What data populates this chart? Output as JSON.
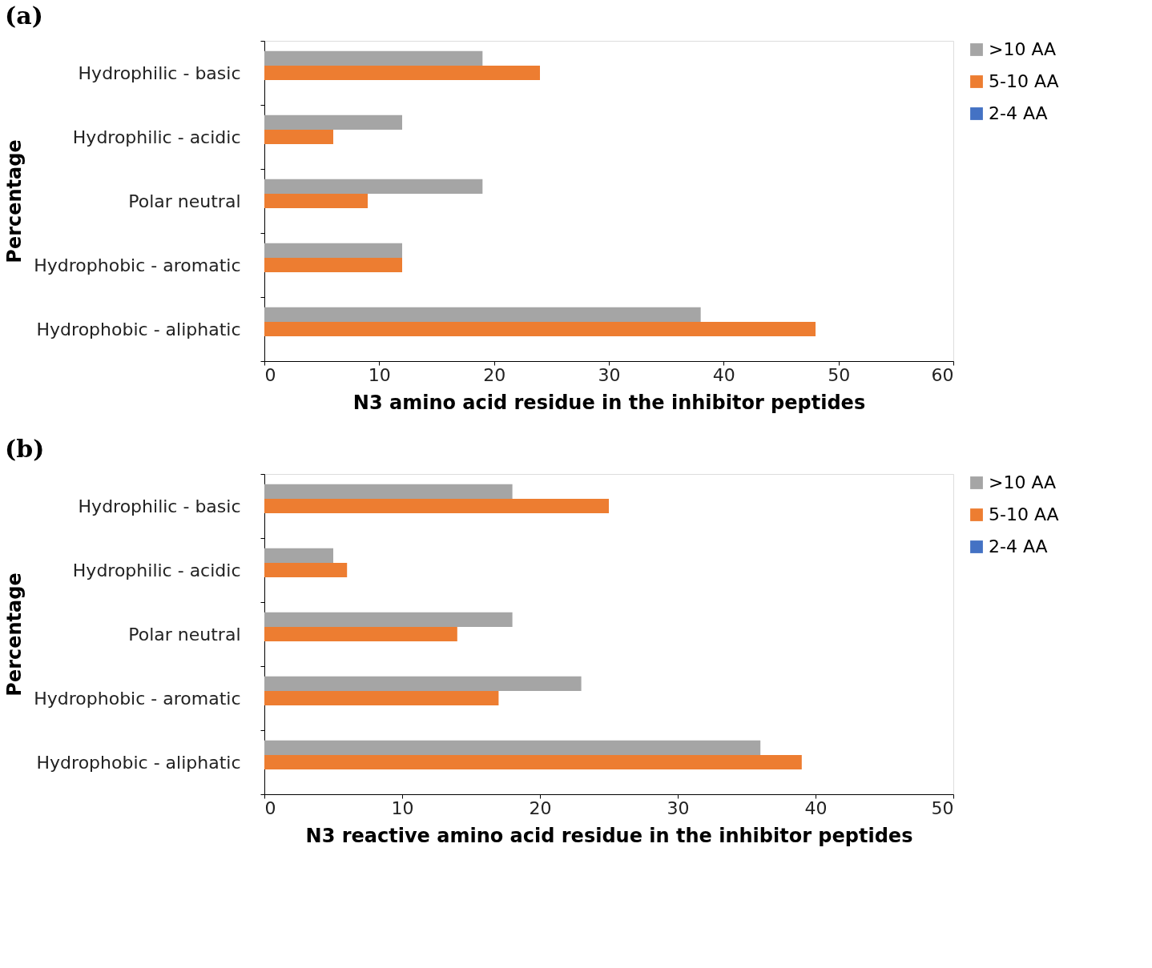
{
  "chart_data": [
    {
      "type": "bar",
      "orientation": "horizontal",
      "title": "(a)",
      "xlabel": "N3 amino acid residue in the inhibitor peptides",
      "ylabel": "Percentage",
      "categories": [
        "Hydrophilic - basic",
        "Hydrophilic - acidic",
        "Polar neutral",
        "Hydrophobic    - aromatic",
        "Hydrophobic    - aliphatic"
      ],
      "series": [
        {
          "name": ">10 AA",
          "color": "#a5a5a5",
          "values": [
            19,
            12,
            19,
            12,
            38
          ]
        },
        {
          "name": "5-10 AA",
          "color": "#ed7d31",
          "values": [
            24,
            6,
            9,
            12,
            48
          ]
        },
        {
          "name": "2-4 AA",
          "color": "#4472c4",
          "values": [
            null,
            null,
            null,
            null,
            null
          ]
        }
      ],
      "xlim": [
        0,
        60
      ],
      "xticks": [
        0,
        10,
        20,
        30,
        40,
        50,
        60
      ],
      "grid": false,
      "legend": "right"
    },
    {
      "type": "bar",
      "orientation": "horizontal",
      "title": "(b)",
      "xlabel": "N3 reactive amino acid residue in the inhibitor peptides",
      "ylabel": "Percentage",
      "categories": [
        "Hydrophilic - basic",
        "Hydrophilic - acidic",
        "Polar neutral",
        "Hydrophobic    - aromatic",
        "Hydrophobic    - aliphatic"
      ],
      "series": [
        {
          "name": ">10 AA",
          "color": "#a5a5a5",
          "values": [
            18,
            5,
            18,
            23,
            36
          ]
        },
        {
          "name": "5-10 AA",
          "color": "#ed7d31",
          "values": [
            25,
            6,
            14,
            17,
            39
          ]
        },
        {
          "name": "2-4 AA",
          "color": "#4472c4",
          "values": [
            null,
            null,
            null,
            null,
            null
          ]
        }
      ],
      "xlim": [
        0,
        50
      ],
      "xticks": [
        0,
        10,
        20,
        30,
        40,
        50
      ],
      "grid": false,
      "legend": "right"
    }
  ]
}
